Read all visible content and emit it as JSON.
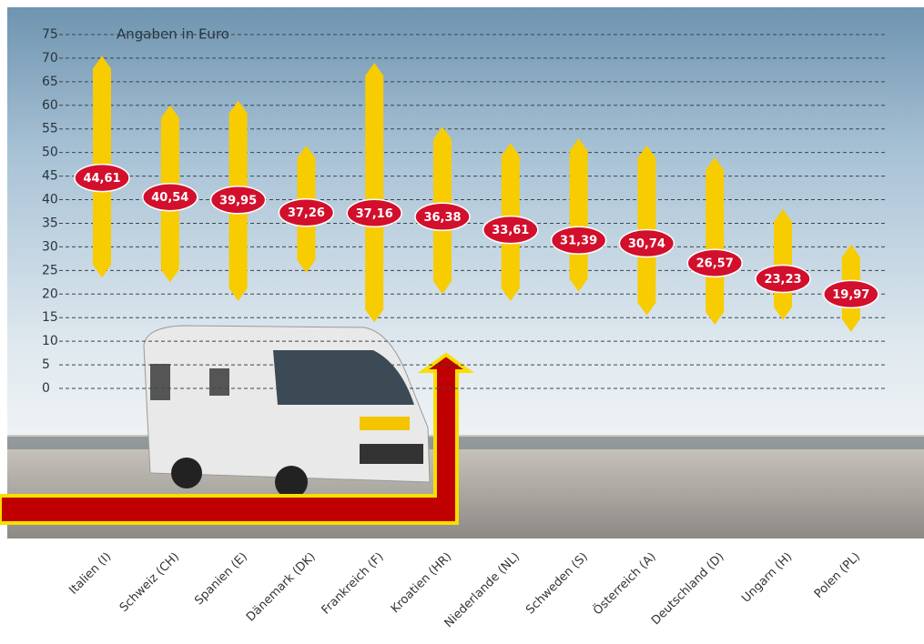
{
  "chart_data": {
    "type": "range-bar",
    "title": "Angaben in Euro",
    "categories": [
      "Italien (I)",
      "Schweiz (CH)",
      "Spanien (E)",
      "Dänemark (DK)",
      "Frankreich (F)",
      "Kroatien (HR)",
      "Niederlande (NL)",
      "Schweden (S)",
      "Österreich (A)",
      "Deutschland (D)",
      "Ungarn (H)",
      "Polen (PL)"
    ],
    "values": [
      44.61,
      40.54,
      39.95,
      37.26,
      37.16,
      36.38,
      33.61,
      31.39,
      30.74,
      26.57,
      23.23,
      19.97
    ],
    "value_labels": [
      "44,61",
      "40,54",
      "39,95",
      "37,26",
      "37,16",
      "36,38",
      "33,61",
      "31,39",
      "30,74",
      "26,57",
      "23,23",
      "19,97"
    ],
    "low": [
      23.5,
      22.5,
      18.5,
      24.5,
      14,
      20,
      18.5,
      20.5,
      15.5,
      13.5,
      14.5,
      12
    ],
    "high": [
      70.5,
      60,
      61,
      51.5,
      69,
      55.5,
      52,
      53,
      51.5,
      49,
      38,
      30.5
    ],
    "color": "#f7cc00",
    "label_color": "#d20f2c",
    "ylim": [
      0,
      75
    ],
    "yticks": [
      0,
      5,
      10,
      15,
      20,
      25,
      30,
      35,
      40,
      45,
      50,
      55,
      60,
      65,
      70,
      75
    ],
    "grid": true
  }
}
